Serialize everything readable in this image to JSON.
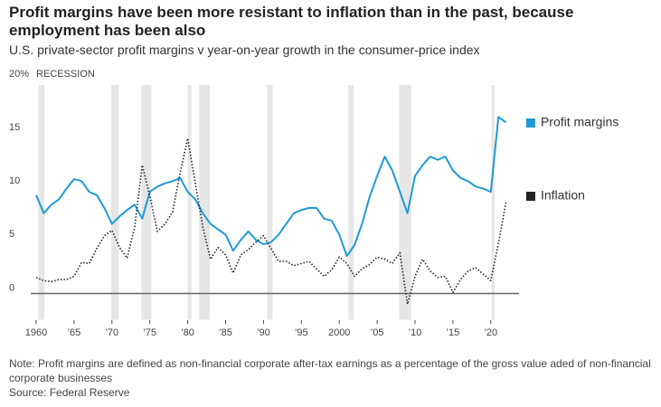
{
  "chart_data": {
    "type": "line",
    "title": "Profit margins have been more resistant to inflation than in the past, because employment has been also",
    "subtitle": "U.S. private-sector profit margins v year-on-year growth in the consumer-price index",
    "note": "Note: Profit margins are defined as non-financial corporate after-tax earnings as a percentage of the gross value aded of non-financial corporate businesses",
    "source": "Source: Federal Reserve",
    "recession_label": "RECESSION",
    "recessions": [
      [
        1960.3,
        1961.1
      ],
      [
        1969.9,
        1970.9
      ],
      [
        1973.9,
        1975.2
      ],
      [
        1980.0,
        1980.5
      ],
      [
        1981.5,
        1982.9
      ],
      [
        1990.5,
        1991.2
      ],
      [
        2001.2,
        2001.9
      ],
      [
        2007.9,
        2009.5
      ],
      [
        2020.1,
        2020.5
      ]
    ],
    "legend": "right",
    "grid": false,
    "xlim": [
      1960,
      2023
    ],
    "ylim": [
      -2.5,
      20
    ],
    "xticks": [
      1960,
      {
        "value": 1965,
        "label": "’65"
      },
      {
        "value": 1970,
        "label": "’70"
      },
      {
        "value": 1975,
        "label": "’75"
      },
      {
        "value": 1980,
        "label": "’80"
      },
      {
        "value": 1985,
        "label": "’85"
      },
      {
        "value": 1990,
        "label": "’90"
      },
      {
        "value": 1995,
        "label": "’95"
      },
      2000,
      {
        "value": 2005,
        "label": "’05"
      },
      {
        "value": 2010,
        "label": "’10"
      },
      {
        "value": 2015,
        "label": "’15"
      },
      {
        "value": 2020,
        "label": "’20"
      }
    ],
    "yticks": [
      {
        "value": 20,
        "label": "20%"
      },
      15,
      10,
      5,
      0
    ],
    "x": [
      1960,
      1961,
      1962,
      1963,
      1964,
      1965,
      1966,
      1967,
      1968,
      1969,
      1970,
      1971,
      1972,
      1973,
      1974,
      1975,
      1976,
      1977,
      1978,
      1979,
      1980,
      1981,
      1982,
      1983,
      1984,
      1985,
      1986,
      1987,
      1988,
      1989,
      1990,
      1991,
      1992,
      1993,
      1994,
      1995,
      1996,
      1997,
      1998,
      1999,
      2000,
      2001,
      2002,
      2003,
      2004,
      2005,
      2006,
      2007,
      2008,
      2009,
      2010,
      2011,
      2012,
      2013,
      2014,
      2015,
      2016,
      2017,
      2018,
      2019,
      2020,
      2021,
      2022
    ],
    "series": [
      {
        "name": "Profit margins",
        "color": "#1f9ad6",
        "dash": false,
        "values": [
          9.2,
          7.5,
          8.3,
          8.8,
          9.8,
          10.7,
          10.5,
          9.5,
          9.2,
          8.0,
          6.5,
          7.2,
          7.8,
          8.3,
          7.0,
          9.5,
          10.0,
          10.3,
          10.5,
          10.8,
          9.5,
          8.8,
          7.5,
          6.5,
          6.0,
          5.5,
          4.0,
          5.0,
          5.8,
          5.0,
          4.6,
          4.8,
          5.5,
          6.5,
          7.5,
          7.8,
          8.0,
          8.0,
          7.0,
          6.8,
          5.5,
          3.5,
          4.5,
          6.5,
          9.0,
          11.0,
          12.8,
          11.5,
          9.5,
          7.5,
          11.0,
          12.0,
          12.8,
          12.5,
          12.8,
          11.5,
          10.8,
          10.5,
          10.0,
          9.8,
          9.5,
          16.5,
          16.0
        ]
      },
      {
        "name": "Inflation",
        "color": "#222222",
        "dash": true,
        "values": [
          1.5,
          1.2,
          1.1,
          1.3,
          1.3,
          1.6,
          2.9,
          2.8,
          4.2,
          5.4,
          5.9,
          4.3,
          3.3,
          6.2,
          12.0,
          9.1,
          5.8,
          6.5,
          7.6,
          11.3,
          14.5,
          10.3,
          6.2,
          3.2,
          4.3,
          3.6,
          1.9,
          3.6,
          4.1,
          4.8,
          5.4,
          4.2,
          3.0,
          3.0,
          2.6,
          2.8,
          3.0,
          2.3,
          1.6,
          2.2,
          3.4,
          2.8,
          1.6,
          2.3,
          2.7,
          3.4,
          3.2,
          2.8,
          3.8,
          -1.0,
          1.6,
          3.2,
          2.1,
          1.5,
          1.6,
          0.1,
          1.3,
          2.1,
          2.4,
          1.8,
          1.2,
          4.7,
          8.5
        ]
      }
    ]
  }
}
